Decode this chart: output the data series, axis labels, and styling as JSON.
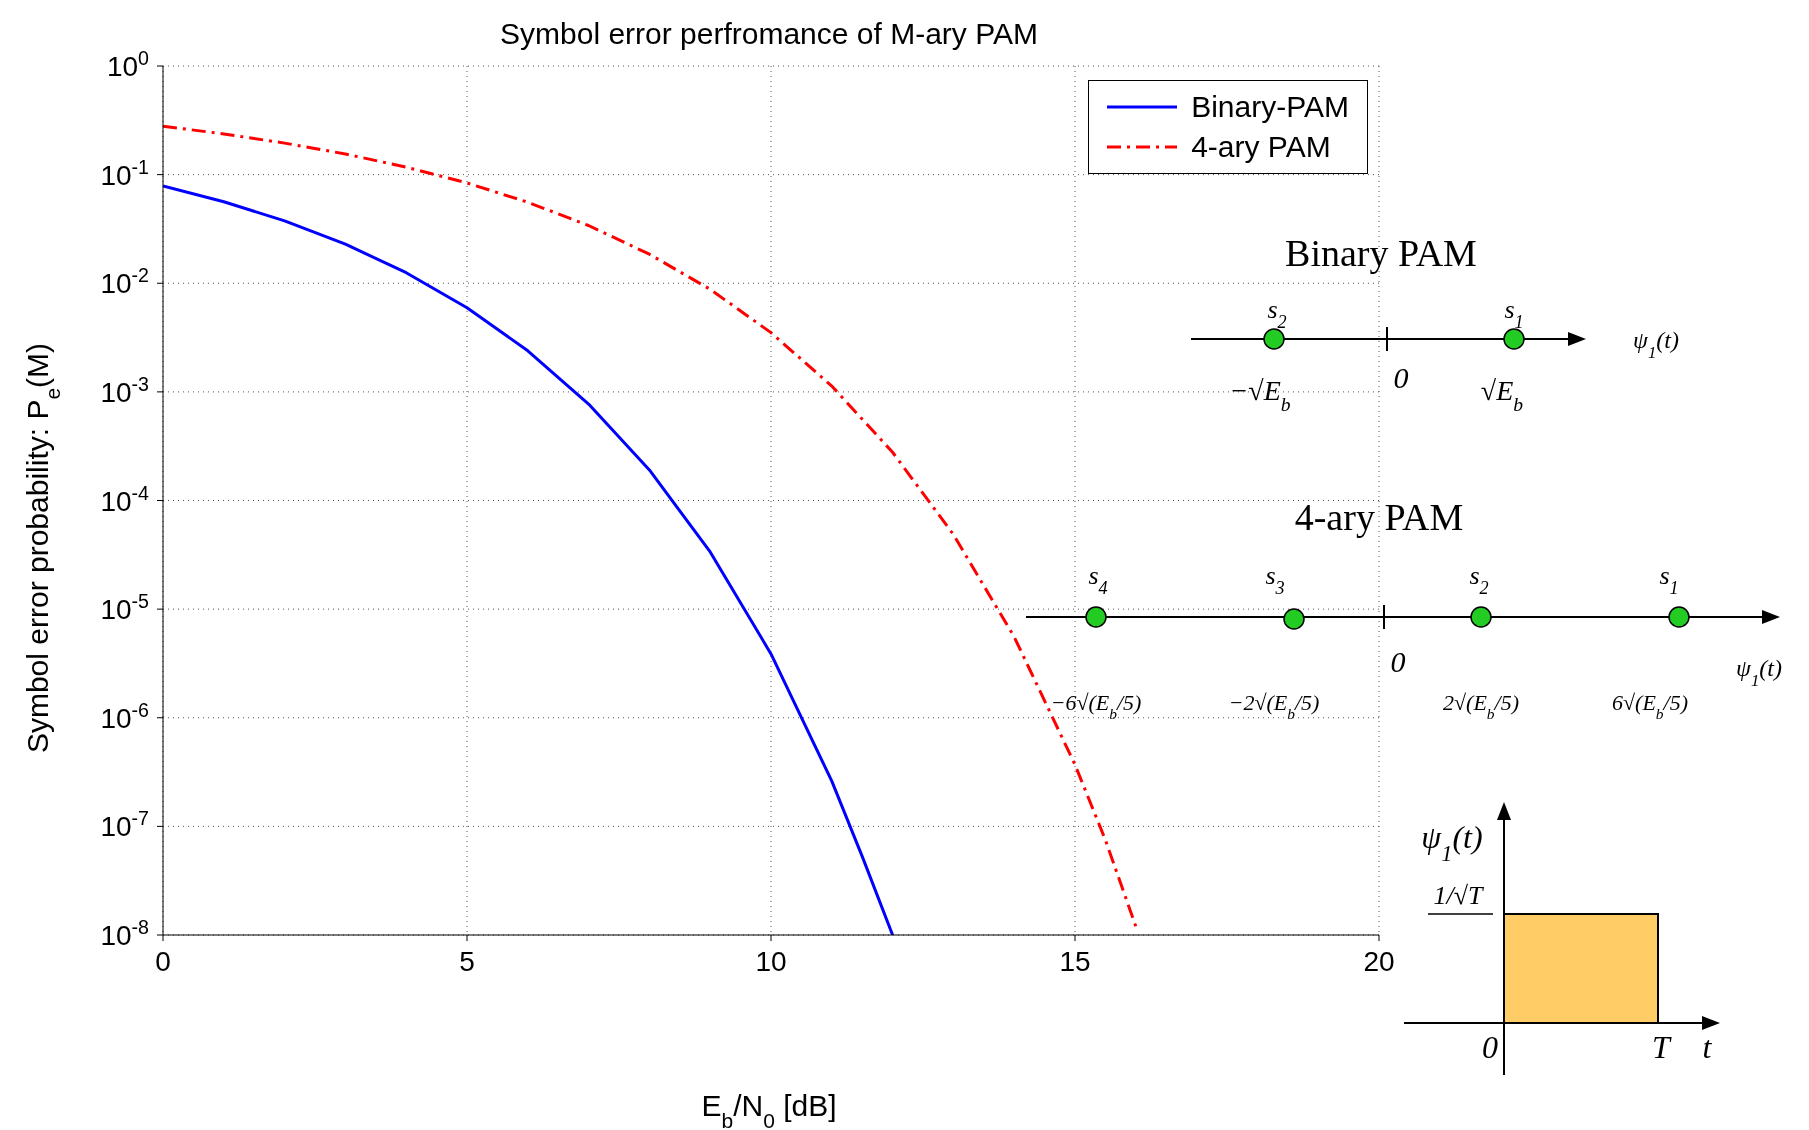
{
  "chart_data": {
    "type": "line",
    "title": "Symbol error perfromance of M-ary PAM",
    "xlabel": "E$_{b}$/N$_{0}$ [dB]",
    "ylabel": "Symbol error probability: P$_{e}$(M)",
    "series": [
      {
        "name": "Binary-PAM",
        "color": "#0000ff",
        "line_style": "solid",
        "x": [
          0,
          1,
          2,
          3,
          4,
          5,
          6,
          7,
          8,
          9,
          10,
          11,
          11.5,
          12
        ],
        "values": [
          0.0786,
          0.0563,
          0.0375,
          0.0229,
          0.0125,
          0.00595,
          0.00239,
          0.000773,
          0.000191,
          3.36e-05,
          3.87e-06,
          2.61e-07,
          5.3e-08,
          1e-08
        ]
      },
      {
        "name": "4-ary PAM",
        "color": "#ff0000",
        "line_style": "dashed",
        "x": [
          0,
          1,
          2,
          3,
          4,
          5,
          6,
          7,
          8,
          9,
          10,
          11,
          12,
          13,
          14,
          15,
          15.5,
          16
        ],
        "values": [
          0.279,
          0.237,
          0.195,
          0.155,
          0.117,
          0.0838,
          0.0557,
          0.034,
          0.0185,
          0.00878,
          0.00351,
          0.00113,
          0.000278,
          4.86e-05,
          5.55e-06,
          3.7e-07,
          7.5e-08,
          1.2e-08
        ]
      }
    ],
    "xlim": [
      0,
      20
    ],
    "xticks": [
      0,
      5,
      10,
      15,
      20
    ],
    "ylim": [
      1e-08,
      1
    ],
    "log": true,
    "yticks": [
      {
        "value": 1e-08,
        "label": "10$^{-8}$"
      },
      {
        "value": 1e-07,
        "label": "10$^{-7}$"
      },
      {
        "value": 1e-06,
        "label": "10$^{-6}$"
      },
      {
        "value": 1e-05,
        "label": "10$^{-5}$"
      },
      {
        "value": 0.0001,
        "label": "10$^{-4}$"
      },
      {
        "value": 0.001,
        "label": "10$^{-3}$"
      },
      {
        "value": 0.01,
        "label": "10$^{-2}$"
      },
      {
        "value": 0.1,
        "label": "10$^{-1}$"
      },
      {
        "value": 1,
        "label": "10$^{0}$"
      }
    ],
    "grid": true,
    "legend": "top right",
    "annotations": [
      "Binary PAM",
      "s$_{2}$",
      "s$_{1}$",
      "ψ$_{1}$(t)",
      "0",
      "−√E$_{b}$",
      "√E$_{b}$",
      "4-ary PAM",
      "s$_{4}$",
      "s$_{3}$",
      "s$_{2}$",
      "s$_{1}$",
      "0",
      "ψ$_{1}$(t)",
      "−6√(E$_{b}$/5)",
      "−2√(E$_{b}$/5)",
      "2√(E$_{b}$/5)",
      "6√(E$_{b}$/5)",
      "ψ$_{1}$(t)",
      "1/√T",
      "0",
      "T",
      "t"
    ]
  }
}
